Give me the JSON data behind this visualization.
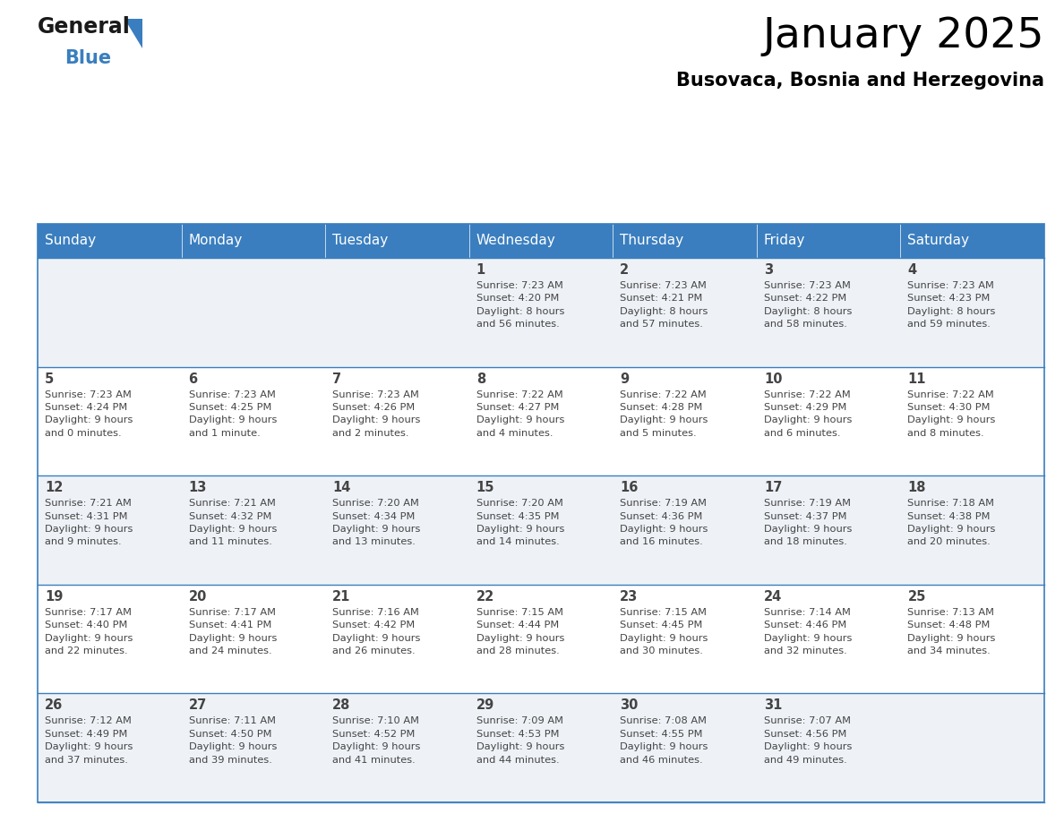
{
  "title": "January 2025",
  "subtitle": "Busovaca, Bosnia and Herzegovina",
  "header_bg": "#3a7ebf",
  "header_text_color": "#ffffff",
  "cell_bg_odd": "#eef2f7",
  "cell_bg_even": "#ffffff",
  "border_color": "#3a7ebf",
  "text_color": "#444444",
  "day_names": [
    "Sunday",
    "Monday",
    "Tuesday",
    "Wednesday",
    "Thursday",
    "Friday",
    "Saturday"
  ],
  "weeks": [
    [
      {
        "day": "",
        "info": ""
      },
      {
        "day": "",
        "info": ""
      },
      {
        "day": "",
        "info": ""
      },
      {
        "day": "1",
        "info": "Sunrise: 7:23 AM\nSunset: 4:20 PM\nDaylight: 8 hours\nand 56 minutes."
      },
      {
        "day": "2",
        "info": "Sunrise: 7:23 AM\nSunset: 4:21 PM\nDaylight: 8 hours\nand 57 minutes."
      },
      {
        "day": "3",
        "info": "Sunrise: 7:23 AM\nSunset: 4:22 PM\nDaylight: 8 hours\nand 58 minutes."
      },
      {
        "day": "4",
        "info": "Sunrise: 7:23 AM\nSunset: 4:23 PM\nDaylight: 8 hours\nand 59 minutes."
      }
    ],
    [
      {
        "day": "5",
        "info": "Sunrise: 7:23 AM\nSunset: 4:24 PM\nDaylight: 9 hours\nand 0 minutes."
      },
      {
        "day": "6",
        "info": "Sunrise: 7:23 AM\nSunset: 4:25 PM\nDaylight: 9 hours\nand 1 minute."
      },
      {
        "day": "7",
        "info": "Sunrise: 7:23 AM\nSunset: 4:26 PM\nDaylight: 9 hours\nand 2 minutes."
      },
      {
        "day": "8",
        "info": "Sunrise: 7:22 AM\nSunset: 4:27 PM\nDaylight: 9 hours\nand 4 minutes."
      },
      {
        "day": "9",
        "info": "Sunrise: 7:22 AM\nSunset: 4:28 PM\nDaylight: 9 hours\nand 5 minutes."
      },
      {
        "day": "10",
        "info": "Sunrise: 7:22 AM\nSunset: 4:29 PM\nDaylight: 9 hours\nand 6 minutes."
      },
      {
        "day": "11",
        "info": "Sunrise: 7:22 AM\nSunset: 4:30 PM\nDaylight: 9 hours\nand 8 minutes."
      }
    ],
    [
      {
        "day": "12",
        "info": "Sunrise: 7:21 AM\nSunset: 4:31 PM\nDaylight: 9 hours\nand 9 minutes."
      },
      {
        "day": "13",
        "info": "Sunrise: 7:21 AM\nSunset: 4:32 PM\nDaylight: 9 hours\nand 11 minutes."
      },
      {
        "day": "14",
        "info": "Sunrise: 7:20 AM\nSunset: 4:34 PM\nDaylight: 9 hours\nand 13 minutes."
      },
      {
        "day": "15",
        "info": "Sunrise: 7:20 AM\nSunset: 4:35 PM\nDaylight: 9 hours\nand 14 minutes."
      },
      {
        "day": "16",
        "info": "Sunrise: 7:19 AM\nSunset: 4:36 PM\nDaylight: 9 hours\nand 16 minutes."
      },
      {
        "day": "17",
        "info": "Sunrise: 7:19 AM\nSunset: 4:37 PM\nDaylight: 9 hours\nand 18 minutes."
      },
      {
        "day": "18",
        "info": "Sunrise: 7:18 AM\nSunset: 4:38 PM\nDaylight: 9 hours\nand 20 minutes."
      }
    ],
    [
      {
        "day": "19",
        "info": "Sunrise: 7:17 AM\nSunset: 4:40 PM\nDaylight: 9 hours\nand 22 minutes."
      },
      {
        "day": "20",
        "info": "Sunrise: 7:17 AM\nSunset: 4:41 PM\nDaylight: 9 hours\nand 24 minutes."
      },
      {
        "day": "21",
        "info": "Sunrise: 7:16 AM\nSunset: 4:42 PM\nDaylight: 9 hours\nand 26 minutes."
      },
      {
        "day": "22",
        "info": "Sunrise: 7:15 AM\nSunset: 4:44 PM\nDaylight: 9 hours\nand 28 minutes."
      },
      {
        "day": "23",
        "info": "Sunrise: 7:15 AM\nSunset: 4:45 PM\nDaylight: 9 hours\nand 30 minutes."
      },
      {
        "day": "24",
        "info": "Sunrise: 7:14 AM\nSunset: 4:46 PM\nDaylight: 9 hours\nand 32 minutes."
      },
      {
        "day": "25",
        "info": "Sunrise: 7:13 AM\nSunset: 4:48 PM\nDaylight: 9 hours\nand 34 minutes."
      }
    ],
    [
      {
        "day": "26",
        "info": "Sunrise: 7:12 AM\nSunset: 4:49 PM\nDaylight: 9 hours\nand 37 minutes."
      },
      {
        "day": "27",
        "info": "Sunrise: 7:11 AM\nSunset: 4:50 PM\nDaylight: 9 hours\nand 39 minutes."
      },
      {
        "day": "28",
        "info": "Sunrise: 7:10 AM\nSunset: 4:52 PM\nDaylight: 9 hours\nand 41 minutes."
      },
      {
        "day": "29",
        "info": "Sunrise: 7:09 AM\nSunset: 4:53 PM\nDaylight: 9 hours\nand 44 minutes."
      },
      {
        "day": "30",
        "info": "Sunrise: 7:08 AM\nSunset: 4:55 PM\nDaylight: 9 hours\nand 46 minutes."
      },
      {
        "day": "31",
        "info": "Sunrise: 7:07 AM\nSunset: 4:56 PM\nDaylight: 9 hours\nand 49 minutes."
      },
      {
        "day": "",
        "info": ""
      }
    ]
  ],
  "logo_general_color": "#1a1a1a",
  "logo_blue_color": "#3a7ebf",
  "logo_triangle_color": "#3a7ebf"
}
